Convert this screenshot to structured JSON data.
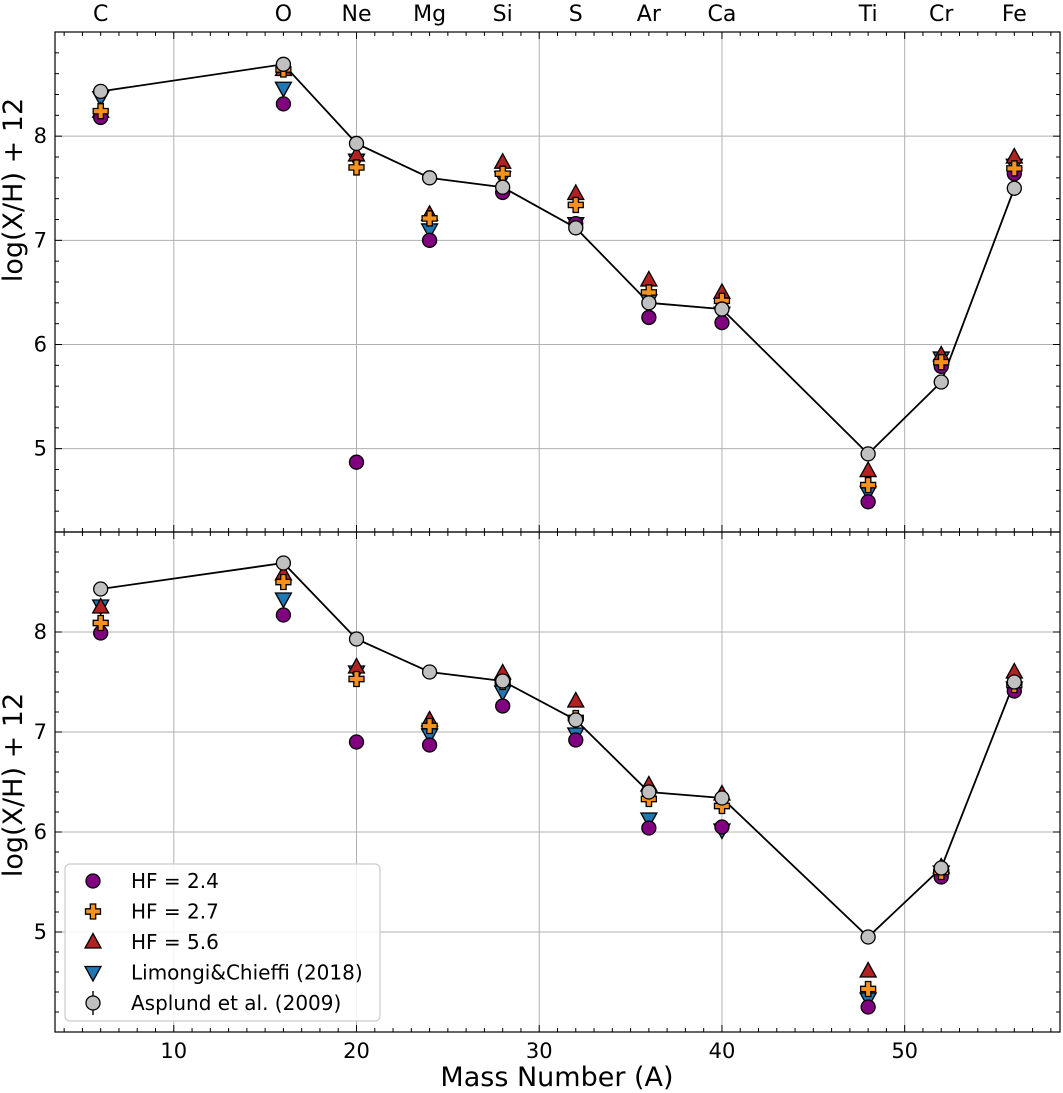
{
  "chart_data": {
    "type": "scatter",
    "xlabel": "Mass Number (A)",
    "ylabel": "log(X/H) + 12",
    "xlim": [
      3.5,
      58.5
    ],
    "x_ticks": [
      10,
      20,
      30,
      40,
      50
    ],
    "x_tick_labels": [
      "10",
      "20",
      "30",
      "40",
      "50"
    ],
    "y_ticks": [
      5,
      6,
      7,
      8
    ],
    "y_tick_labels": [
      "5",
      "6",
      "7",
      "8"
    ],
    "grid": true,
    "element_labels": [
      {
        "x": 6,
        "label": "C"
      },
      {
        "x": 16,
        "label": "O"
      },
      {
        "x": 20,
        "label": "Ne"
      },
      {
        "x": 24,
        "label": "Mg"
      },
      {
        "x": 28,
        "label": "Si"
      },
      {
        "x": 32,
        "label": "S"
      },
      {
        "x": 36,
        "label": "Ar"
      },
      {
        "x": 40,
        "label": "Ca"
      },
      {
        "x": 48,
        "label": "Ti"
      },
      {
        "x": 52,
        "label": "Cr"
      },
      {
        "x": 56,
        "label": "Fe"
      }
    ],
    "legend": {
      "location": "lower-left",
      "entries": [
        {
          "label": "HF = 2.4",
          "marker": "circle",
          "color": "#800080"
        },
        {
          "label": "HF = 2.7",
          "marker": "plus",
          "color": "#f5921e"
        },
        {
          "label": "HF = 5.6",
          "marker": "triangle-up",
          "color": "#b22222"
        },
        {
          "label": "Limongi&Chieffi (2018)",
          "marker": "triangle-down",
          "color": "#1f77b4"
        },
        {
          "label": "Asplund et al. (2009)",
          "marker": "circle",
          "color": "#c0c0c0"
        }
      ]
    },
    "panels": [
      {
        "name": "top",
        "ylim": [
          4.2,
          9.0
        ],
        "x": [
          6,
          16,
          20,
          24,
          28,
          32,
          36,
          40,
          48,
          52,
          56
        ],
        "series": [
          {
            "name": "HF = 2.4",
            "values": [
              8.18,
              8.31,
              4.87,
              7.0,
              7.46,
              7.16,
              6.26,
              6.21,
              4.49,
              5.79,
              7.64
            ]
          },
          {
            "name": "HF = 2.7",
            "values": [
              8.24,
              8.64,
              7.7,
              7.21,
              7.64,
              7.34,
              6.5,
              6.42,
              4.65,
              5.83,
              7.69
            ]
          },
          {
            "name": "HF = 5.6",
            "values": [
              8.24,
              8.64,
              7.82,
              7.25,
              7.75,
              7.45,
              6.62,
              6.5,
              4.79,
              5.9,
              7.8
            ]
          },
          {
            "name": "Limongi&Chieffi (2018)",
            "values": [
              8.37,
              8.46,
              7.77,
              7.1,
              7.6,
              7.16,
              6.42,
              6.3,
              4.58,
              5.87,
              7.72
            ]
          },
          {
            "name": "Asplund et al. (2009)",
            "values": [
              8.43,
              8.69,
              7.93,
              7.6,
              7.51,
              7.12,
              6.4,
              6.34,
              4.95,
              5.64,
              7.5
            ]
          }
        ]
      },
      {
        "name": "bottom",
        "ylim": [
          4.0,
          9.0
        ],
        "x": [
          6,
          16,
          20,
          24,
          28,
          32,
          36,
          40,
          48,
          52,
          56
        ],
        "series": [
          {
            "name": "HF = 2.4",
            "values": [
              7.99,
              8.17,
              6.9,
              6.87,
              7.26,
              6.92,
              6.04,
              6.05,
              4.25,
              5.55,
              7.41
            ]
          },
          {
            "name": "HF = 2.7",
            "values": [
              8.09,
              8.5,
              7.53,
              7.06,
              7.5,
              7.14,
              6.33,
              6.26,
              4.43,
              5.6,
              7.47
            ]
          },
          {
            "name": "HF = 5.6",
            "values": [
              8.25,
              8.58,
              7.65,
              7.12,
              7.59,
              7.31,
              6.47,
              6.38,
              4.61,
              5.65,
              7.6
            ]
          },
          {
            "name": "Limongi&Chieffi (2018)",
            "values": [
              8.26,
              8.33,
              7.6,
              6.97,
              7.4,
              6.98,
              6.13,
              6.02,
              4.33,
              5.6,
              7.44
            ]
          },
          {
            "name": "Asplund et al. (2009)",
            "values": [
              8.43,
              8.69,
              7.93,
              7.6,
              7.51,
              7.12,
              6.4,
              6.34,
              4.95,
              5.64,
              7.5
            ]
          }
        ]
      }
    ]
  }
}
